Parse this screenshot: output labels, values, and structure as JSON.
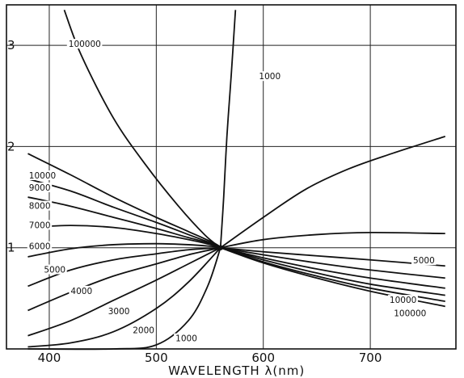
{
  "chart_data": {
    "type": "line",
    "title": "",
    "xlabel": "WAVELENGTH λ(nm)",
    "ylabel": "",
    "xlim": [
      360,
      780
    ],
    "ylim": [
      0.0,
      3.4
    ],
    "x_ticks": [
      "400",
      "500",
      "600",
      "700"
    ],
    "y_ticks": [
      "1",
      "2",
      "3"
    ],
    "grid": true,
    "center_point": {
      "x": 560,
      "y": 1.0
    },
    "curves": [
      {
        "label": "100000",
        "label_pos": [
          418,
          3.0
        ],
        "points": [
          [
            414,
            3.35
          ],
          [
            430,
            2.9
          ],
          [
            460,
            2.28
          ],
          [
            490,
            1.82
          ],
          [
            520,
            1.42
          ],
          [
            545,
            1.13
          ],
          [
            560,
            1.0
          ]
        ]
      },
      {
        "label": "1000",
        "label_pos": [
          596,
          2.68
        ],
        "points": [
          [
            560,
            1.0
          ],
          [
            563,
            1.5
          ],
          [
            566,
            2.1
          ],
          [
            570,
            2.7
          ],
          [
            574,
            3.35
          ]
        ]
      },
      {
        "label": "10000",
        "label_pos": [
          381,
          1.7
        ],
        "points": [
          [
            380,
            1.93
          ],
          [
            420,
            1.72
          ],
          [
            460,
            1.5
          ],
          [
            500,
            1.3
          ],
          [
            530,
            1.16
          ],
          [
            555,
            1.04
          ],
          [
            560,
            1.0
          ]
        ]
      },
      {
        "label": "9000",
        "label_pos": [
          381,
          1.58
        ],
        "points": [
          [
            380,
            1.68
          ],
          [
            420,
            1.56
          ],
          [
            460,
            1.4
          ],
          [
            500,
            1.25
          ],
          [
            530,
            1.13
          ],
          [
            555,
            1.03
          ],
          [
            560,
            1.0
          ]
        ]
      },
      {
        "label": "8000",
        "label_pos": [
          381,
          1.4
        ],
        "points": [
          [
            380,
            1.5
          ],
          [
            420,
            1.41
          ],
          [
            460,
            1.3
          ],
          [
            500,
            1.19
          ],
          [
            530,
            1.1
          ],
          [
            555,
            1.03
          ],
          [
            560,
            1.0
          ]
        ]
      },
      {
        "label": "7000",
        "label_pos": [
          381,
          1.21
        ],
        "points": [
          [
            380,
            1.2
          ],
          [
            420,
            1.22
          ],
          [
            460,
            1.2
          ],
          [
            500,
            1.14
          ],
          [
            530,
            1.08
          ],
          [
            555,
            1.02
          ],
          [
            560,
            1.0
          ]
        ]
      },
      {
        "label": "6000",
        "label_pos": [
          381,
          1.0
        ],
        "points": [
          [
            380,
            0.91
          ],
          [
            420,
            0.99
          ],
          [
            460,
            1.03
          ],
          [
            500,
            1.04
          ],
          [
            530,
            1.03
          ],
          [
            555,
            1.01
          ],
          [
            560,
            1.0
          ]
        ]
      },
      {
        "label": "5000",
        "label_pos": [
          395,
          0.77
        ],
        "points": [
          [
            380,
            0.62
          ],
          [
            420,
            0.78
          ],
          [
            460,
            0.88
          ],
          [
            500,
            0.94
          ],
          [
            530,
            0.98
          ],
          [
            560,
            1.0
          ]
        ]
      },
      {
        "label": "4000",
        "label_pos": [
          420,
          0.56
        ],
        "points": [
          [
            380,
            0.38
          ],
          [
            420,
            0.56
          ],
          [
            460,
            0.72
          ],
          [
            500,
            0.84
          ],
          [
            530,
            0.93
          ],
          [
            560,
            1.0
          ]
        ]
      },
      {
        "label": "3000",
        "label_pos": [
          455,
          0.36
        ],
        "points": [
          [
            380,
            0.13
          ],
          [
            420,
            0.28
          ],
          [
            460,
            0.48
          ],
          [
            500,
            0.68
          ],
          [
            530,
            0.84
          ],
          [
            560,
            1.0
          ]
        ]
      },
      {
        "label": "2000",
        "label_pos": [
          478,
          0.17
        ],
        "points": [
          [
            380,
            0.02
          ],
          [
            420,
            0.06
          ],
          [
            460,
            0.17
          ],
          [
            500,
            0.4
          ],
          [
            530,
            0.66
          ],
          [
            560,
            1.0
          ]
        ]
      },
      {
        "label": "1000",
        "label_pos": [
          518,
          0.09
        ],
        "points": [
          [
            380,
            0.0
          ],
          [
            460,
            0.0
          ],
          [
            500,
            0.04
          ],
          [
            530,
            0.28
          ],
          [
            548,
            0.62
          ],
          [
            560,
            1.0
          ]
        ]
      },
      {
        "label": "",
        "points": [
          [
            560,
            1.0
          ],
          [
            600,
            1.3
          ],
          [
            640,
            1.58
          ],
          [
            680,
            1.78
          ],
          [
            720,
            1.93
          ],
          [
            770,
            2.1
          ]
        ]
      },
      {
        "label": "",
        "points": [
          [
            560,
            1.0
          ],
          [
            600,
            1.08
          ],
          [
            650,
            1.13
          ],
          [
            700,
            1.15
          ],
          [
            770,
            1.14
          ]
        ]
      },
      {
        "label": "5000",
        "label_pos": [
          740,
          0.86
        ],
        "points": [
          [
            560,
            1.0
          ],
          [
            600,
            0.96
          ],
          [
            650,
            0.92
          ],
          [
            700,
            0.88
          ],
          [
            770,
            0.82
          ]
        ]
      },
      {
        "label": "",
        "points": [
          [
            560,
            1.0
          ],
          [
            600,
            0.93
          ],
          [
            650,
            0.85
          ],
          [
            700,
            0.78
          ],
          [
            770,
            0.7
          ]
        ]
      },
      {
        "label": "",
        "points": [
          [
            560,
            1.0
          ],
          [
            600,
            0.9
          ],
          [
            650,
            0.79
          ],
          [
            700,
            0.7
          ],
          [
            770,
            0.6
          ]
        ]
      },
      {
        "label": "",
        "points": [
          [
            560,
            1.0
          ],
          [
            600,
            0.88
          ],
          [
            650,
            0.75
          ],
          [
            700,
            0.64
          ],
          [
            770,
            0.53
          ]
        ]
      },
      {
        "label": "10000",
        "label_pos": [
          718,
          0.47
        ],
        "points": [
          [
            560,
            1.0
          ],
          [
            600,
            0.86
          ],
          [
            650,
            0.72
          ],
          [
            700,
            0.6
          ],
          [
            770,
            0.47
          ]
        ]
      },
      {
        "label": "100000",
        "label_pos": [
          722,
          0.34
        ],
        "points": [
          [
            560,
            1.0
          ],
          [
            600,
            0.85
          ],
          [
            650,
            0.7
          ],
          [
            700,
            0.57
          ],
          [
            770,
            0.42
          ]
        ]
      }
    ]
  }
}
